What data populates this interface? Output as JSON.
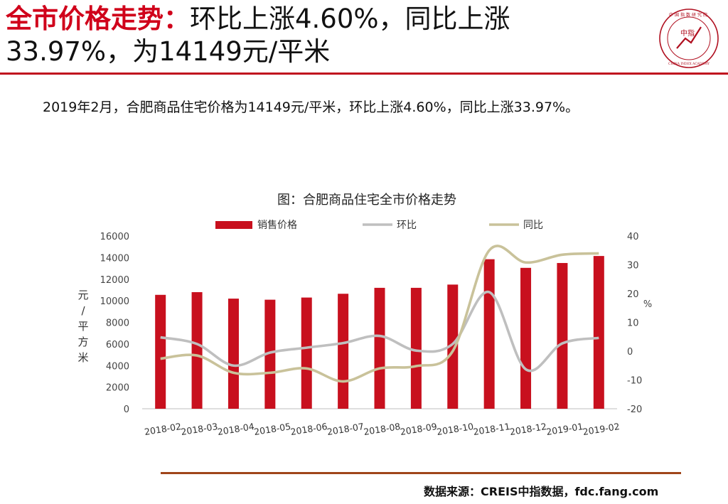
{
  "header": {
    "title_accent": "全市价格走势：",
    "title_rest_line1": "环比上涨4.60%，同比上涨",
    "title_line2": "33.97%，为14149元/平米"
  },
  "logo": {
    "center_text": "中指",
    "ring_text": "中国指数研究院",
    "en_text": "CHINA INDEX ACADEMY",
    "icon": "china-index-academy-seal"
  },
  "summary": "2019年2月，合肥商品住宅价格为14149元/平米，环比上涨4.60%，同比上涨33.97%。",
  "source": "数据来源：CREIS中指数据，fdc.fang.com",
  "colors": {
    "accent_red": "#d0021b",
    "bar_red": "#c8101e",
    "mom_line": "#bfbfbf",
    "yoy_line": "#c9c29a",
    "footer_rule": "#a0451a"
  },
  "chart_data": {
    "type": "bar",
    "title": "图：合肥商品住宅全市价格走势",
    "categories": [
      "2018-02",
      "2018-03",
      "2018-04",
      "2018-05",
      "2018-06",
      "2018-07",
      "2018-08",
      "2018-09",
      "2018-10",
      "2018-11",
      "2018-12",
      "2019-01",
      "2019-02"
    ],
    "ylabel": "元/平方米",
    "y2label": "%",
    "ylim": [
      0,
      16000
    ],
    "y2lim": [
      -20,
      40
    ],
    "yticks": [
      "0",
      "2000",
      "4000",
      "6000",
      "8000",
      "10000",
      "12000",
      "14000",
      "16000"
    ],
    "y2ticks": [
      "-20",
      "-10",
      "0",
      "10",
      "20",
      "30",
      "40"
    ],
    "legend_position": "top",
    "grid": false,
    "series": [
      {
        "name": "销售价格",
        "type": "bar",
        "axis": "left",
        "color": "#c8101e",
        "values": [
          10550,
          10800,
          10200,
          10100,
          10300,
          10650,
          11200,
          11200,
          11500,
          13850,
          13050,
          13500,
          14149
        ]
      },
      {
        "name": "环比",
        "type": "line",
        "axis": "right",
        "color": "#bfbfbf",
        "values": [
          4.8,
          2.5,
          -5.0,
          -0.5,
          1.2,
          2.8,
          5.3,
          0.2,
          2.5,
          20.5,
          -6.3,
          2.7,
          4.6
        ]
      },
      {
        "name": "同比",
        "type": "line",
        "axis": "right",
        "color": "#c9c29a",
        "values": [
          -2.6,
          -1.5,
          -7.5,
          -7.5,
          -6.0,
          -10.5,
          -6.0,
          -5.2,
          0.0,
          35.0,
          30.8,
          33.5,
          33.97
        ]
      }
    ]
  }
}
